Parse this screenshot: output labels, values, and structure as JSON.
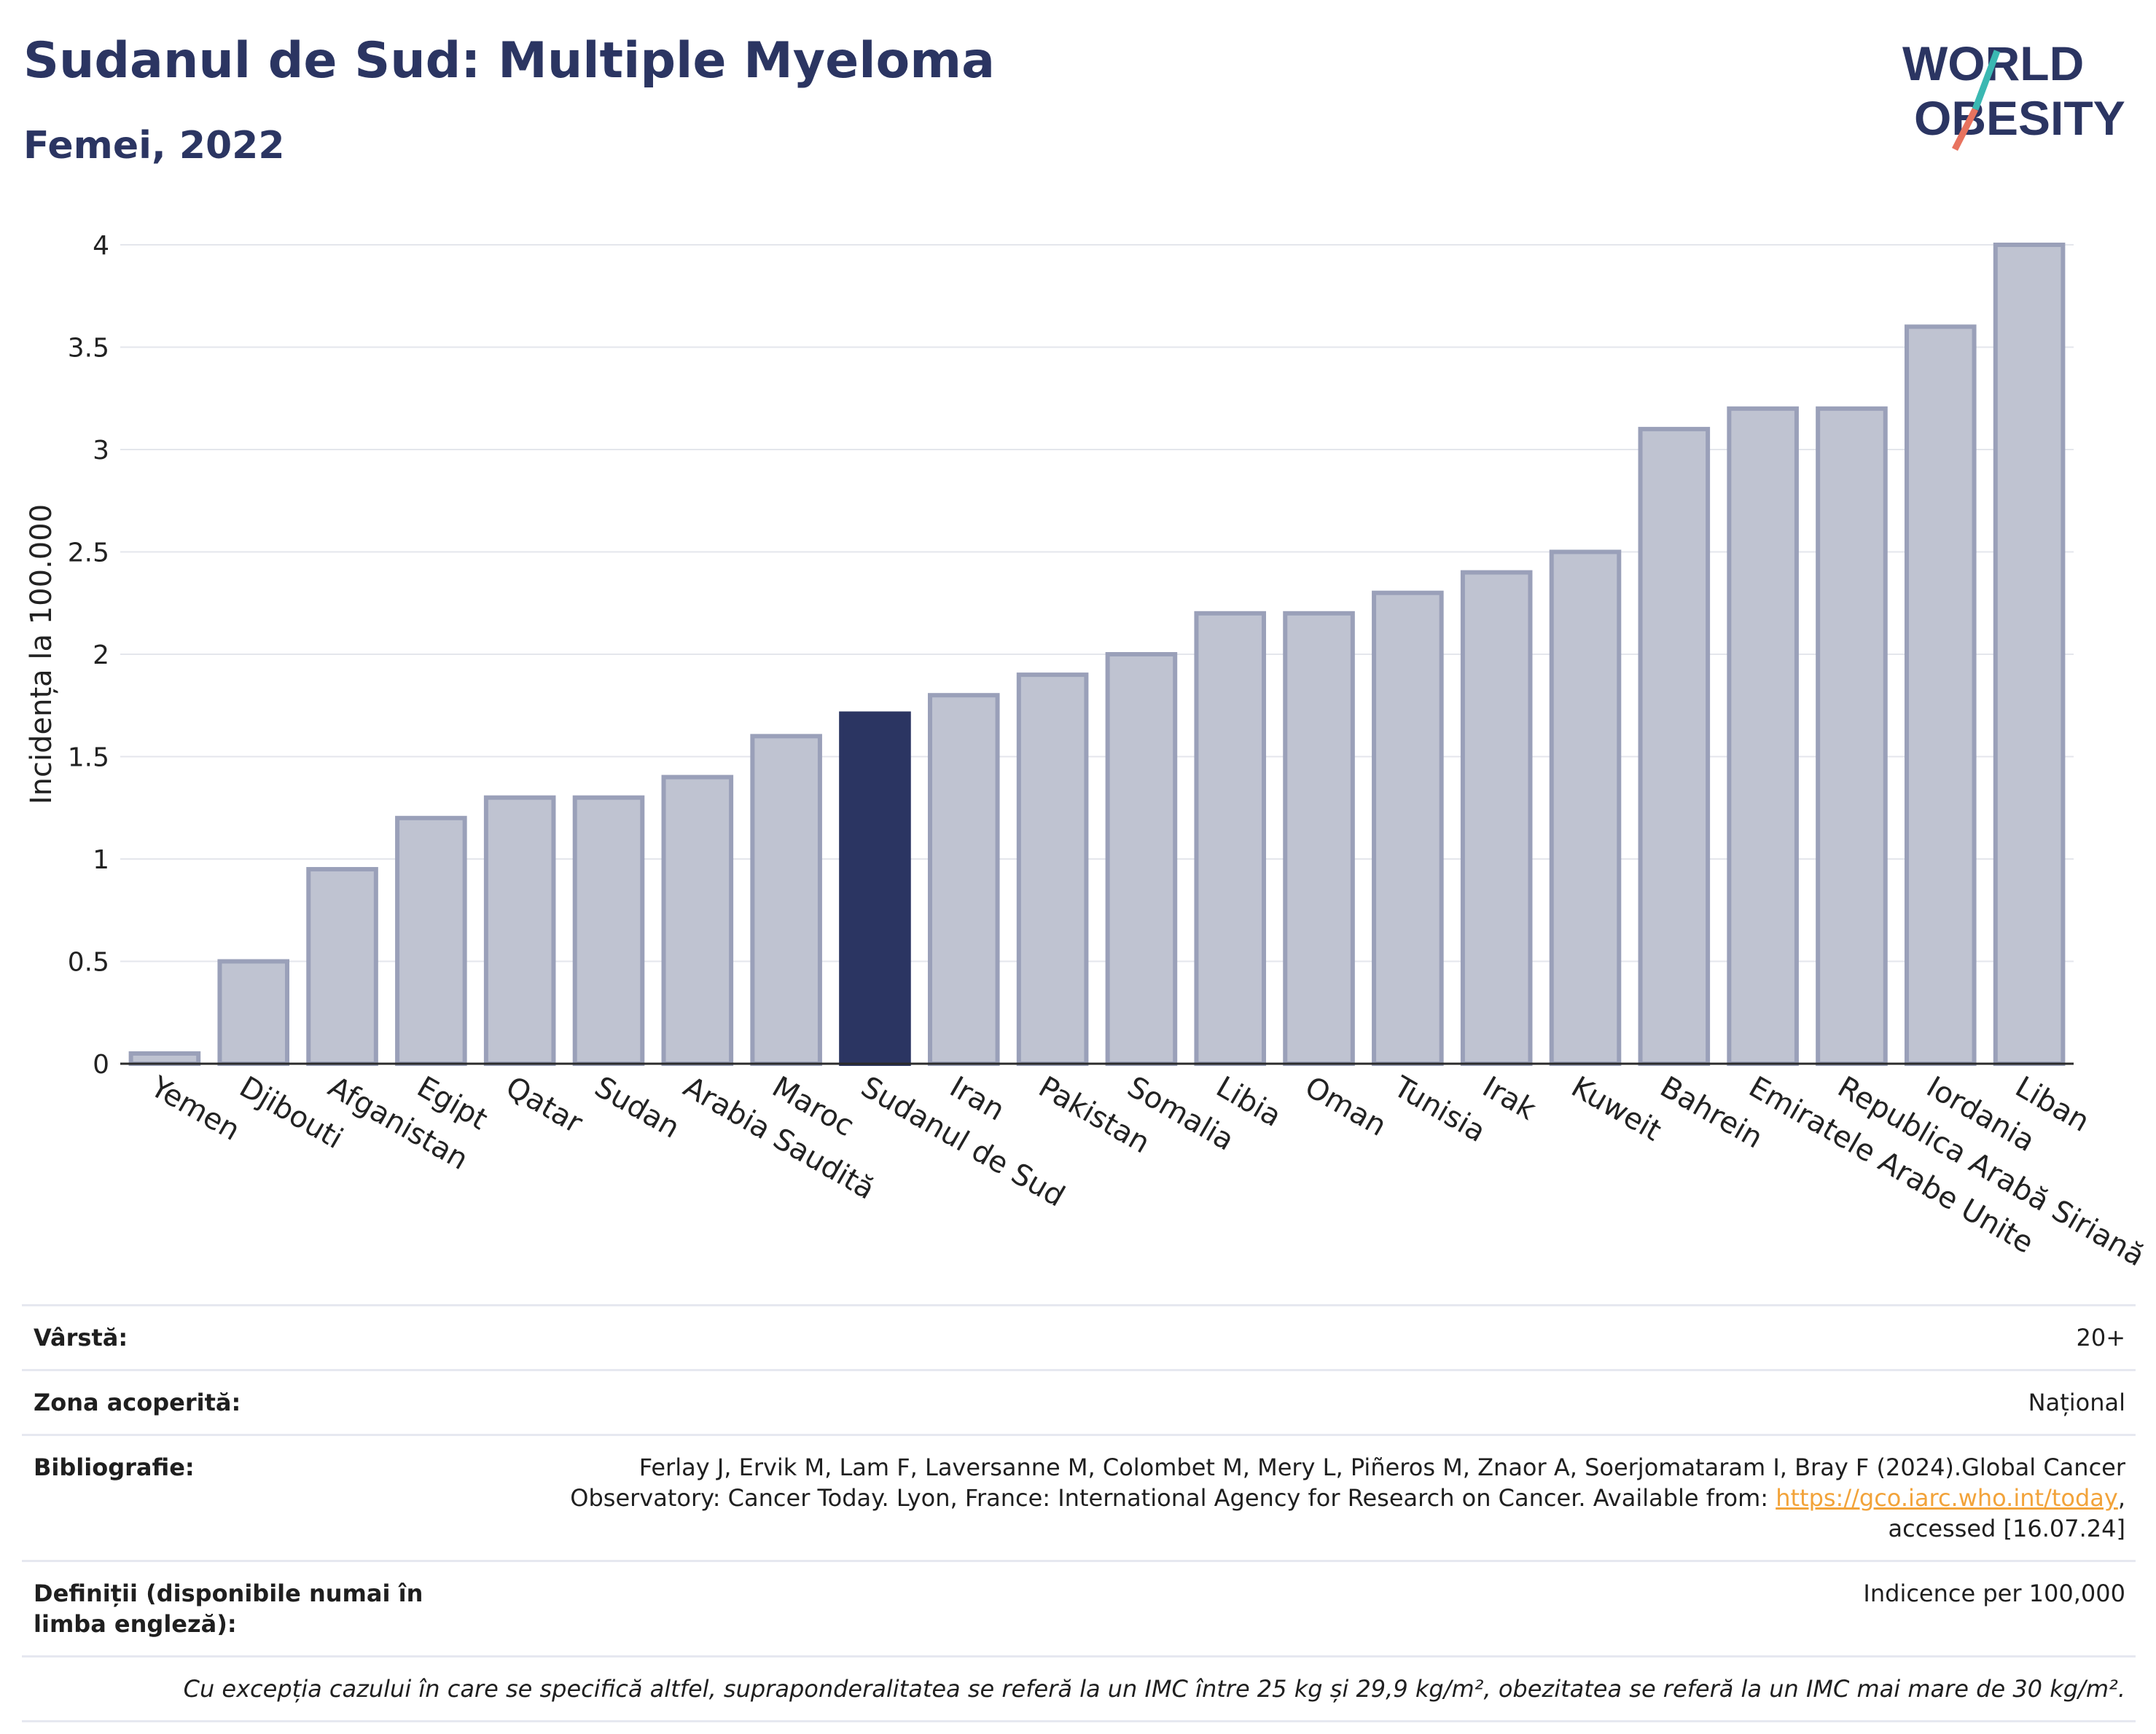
{
  "title": "Sudanul de Sud: Multiple Myeloma",
  "subtitle": "Femei, 2022",
  "logo": {
    "line1": "WORLD",
    "line2": "OBESITY"
  },
  "colors": {
    "bar": "#bfc3d1",
    "bar_border": "#9aa0b9",
    "highlight": "#2b3562",
    "grid": "#e4e6ec",
    "axis": "#2b2b2b",
    "title": "#2b3562",
    "link": "#f2a33a"
  },
  "chart_data": {
    "type": "bar",
    "categories": [
      "Yemen",
      "Djibouti",
      "Afganistan",
      "Egipt",
      "Qatar",
      "Sudan",
      "Arabia Saudită",
      "Maroc",
      "Sudanul de Sud",
      "Iran",
      "Pakistan",
      "Somalia",
      "Libia",
      "Oman",
      "Tunisia",
      "Irak",
      "Kuweit",
      "Bahrein",
      "Emiratele Arabe Unite",
      "Republica Arabă Siriană",
      "Iordania",
      "Liban"
    ],
    "values": [
      0.05,
      0.5,
      0.95,
      1.2,
      1.3,
      1.3,
      1.4,
      1.6,
      1.71,
      1.8,
      1.9,
      2.0,
      2.2,
      2.2,
      2.3,
      2.4,
      2.5,
      3.1,
      3.2,
      3.2,
      3.6,
      4.0
    ],
    "highlight": "Sudanul de Sud",
    "ylabel": "Incidența la 100.000",
    "ylim": [
      0,
      4
    ],
    "yticks": [
      "0",
      "0.5",
      "1",
      "1.5",
      "2",
      "2.5",
      "3",
      "3.5",
      "4"
    ],
    "grid": true
  },
  "info": [
    {
      "key": "Vârstă:",
      "value": "20+"
    },
    {
      "key": "Zona acoperită:",
      "value": "Național"
    },
    {
      "key": "Bibliografie:",
      "value_pre": "Ferlay J, Ervik M, Lam F, Laversanne M, Colombet M, Mery L, Piñeros M, Znaor A, Soerjomataram I, Bray F (2024).Global Cancer Observatory: Cancer Today. Lyon, France: International Agency for Research on Cancer. Available from: ",
      "link": "https://gco.iarc.who.int/today",
      "value_post": ", accessed [16.07.24]"
    },
    {
      "key": "Definiții (disponibile numai în limba engleză):",
      "value": "Indicence per 100,000"
    }
  ],
  "note": "Cu excepția cazului în care se specifică altfel, supraponderalitatea se referă la un IMC între 25 kg și 29,9 kg/m², obezitatea se referă la un IMC mai mare de 30 kg/m²."
}
